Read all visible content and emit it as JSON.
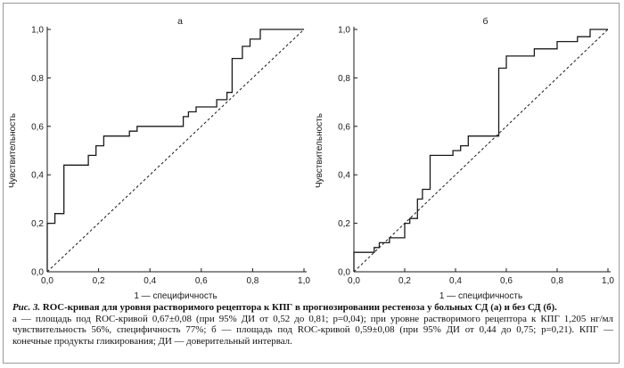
{
  "figure": {
    "label": "Рис. 3.",
    "title": "ROC-кривая для уровня растворимого рецептора к КПГ в прогнозировании рестеноза у больных СД (а) и без СД (б).",
    "body_line1": "а — площадь под ROC-кривой 0,67±0,08 (при 95% ДИ от 0,52 до 0,81; p=0,04); при уровне растворимого рецептора к КПГ 1,205 нг/мл",
    "body_line2": "чувствительность 56%, специфичность 77%; б — площадь под ROC-кривой 0,59±0,08 (при 95% ДИ от 0,44 до 0,75; p=0,21). КПГ —",
    "body_line3": "конечные продукты гликирования; ДИ — доверительный интервал."
  },
  "chart_data": [
    {
      "type": "line",
      "title": "а",
      "xlabel": "1 — специфичность",
      "ylabel": "Чувствительность",
      "xlim": [
        0,
        1
      ],
      "ylim": [
        0,
        1
      ],
      "x_ticks": [
        "0,0",
        "0,2",
        "0,4",
        "0,6",
        "0,8",
        "1,0"
      ],
      "y_ticks": [
        "0,0",
        "0,2",
        "0,4",
        "0,6",
        "0,8",
        "1,0"
      ],
      "reference_line": [
        [
          0,
          0
        ],
        [
          1,
          1
        ]
      ],
      "series": [
        {
          "name": "ROC",
          "points": [
            [
              0,
              0
            ],
            [
              0,
              0.2
            ],
            [
              0.03,
              0.2
            ],
            [
              0.03,
              0.24
            ],
            [
              0.065,
              0.24
            ],
            [
              0.065,
              0.44
            ],
            [
              0.16,
              0.44
            ],
            [
              0.16,
              0.48
            ],
            [
              0.19,
              0.48
            ],
            [
              0.19,
              0.52
            ],
            [
              0.22,
              0.52
            ],
            [
              0.22,
              0.56
            ],
            [
              0.32,
              0.56
            ],
            [
              0.32,
              0.58
            ],
            [
              0.35,
              0.58
            ],
            [
              0.35,
              0.6
            ],
            [
              0.53,
              0.6
            ],
            [
              0.53,
              0.64
            ],
            [
              0.55,
              0.64
            ],
            [
              0.55,
              0.66
            ],
            [
              0.58,
              0.66
            ],
            [
              0.58,
              0.68
            ],
            [
              0.66,
              0.68
            ],
            [
              0.66,
              0.71
            ],
            [
              0.7,
              0.71
            ],
            [
              0.7,
              0.74
            ],
            [
              0.72,
              0.74
            ],
            [
              0.72,
              0.88
            ],
            [
              0.76,
              0.88
            ],
            [
              0.76,
              0.93
            ],
            [
              0.79,
              0.93
            ],
            [
              0.79,
              0.96
            ],
            [
              0.83,
              0.96
            ],
            [
              0.83,
              1.0
            ],
            [
              1.0,
              1.0
            ]
          ]
        }
      ]
    },
    {
      "type": "line",
      "title": "б",
      "xlabel": "1 — специфичность",
      "ylabel": "Чувствительность",
      "xlim": [
        0,
        1
      ],
      "ylim": [
        0,
        1
      ],
      "x_ticks": [
        "0,0",
        "0,2",
        "0,4",
        "0,6",
        "0,8",
        "1,0"
      ],
      "y_ticks": [
        "0,0",
        "0,2",
        "0,4",
        "0,6",
        "0,8",
        "1,0"
      ],
      "reference_line": [
        [
          0,
          0
        ],
        [
          1,
          1
        ]
      ],
      "series": [
        {
          "name": "ROC",
          "points": [
            [
              0,
              0
            ],
            [
              0,
              0.08
            ],
            [
              0.08,
              0.08
            ],
            [
              0.08,
              0.1
            ],
            [
              0.1,
              0.1
            ],
            [
              0.1,
              0.12
            ],
            [
              0.14,
              0.12
            ],
            [
              0.14,
              0.14
            ],
            [
              0.2,
              0.14
            ],
            [
              0.2,
              0.2
            ],
            [
              0.22,
              0.2
            ],
            [
              0.22,
              0.22
            ],
            [
              0.25,
              0.22
            ],
            [
              0.25,
              0.3
            ],
            [
              0.27,
              0.3
            ],
            [
              0.27,
              0.34
            ],
            [
              0.3,
              0.34
            ],
            [
              0.3,
              0.48
            ],
            [
              0.39,
              0.48
            ],
            [
              0.39,
              0.5
            ],
            [
              0.42,
              0.5
            ],
            [
              0.42,
              0.52
            ],
            [
              0.45,
              0.52
            ],
            [
              0.45,
              0.56
            ],
            [
              0.57,
              0.56
            ],
            [
              0.57,
              0.84
            ],
            [
              0.6,
              0.84
            ],
            [
              0.6,
              0.89
            ],
            [
              0.71,
              0.89
            ],
            [
              0.71,
              0.92
            ],
            [
              0.8,
              0.92
            ],
            [
              0.8,
              0.95
            ],
            [
              0.88,
              0.95
            ],
            [
              0.88,
              0.97
            ],
            [
              0.93,
              0.97
            ],
            [
              0.93,
              1.0
            ],
            [
              1.0,
              1.0
            ]
          ]
        }
      ]
    }
  ]
}
